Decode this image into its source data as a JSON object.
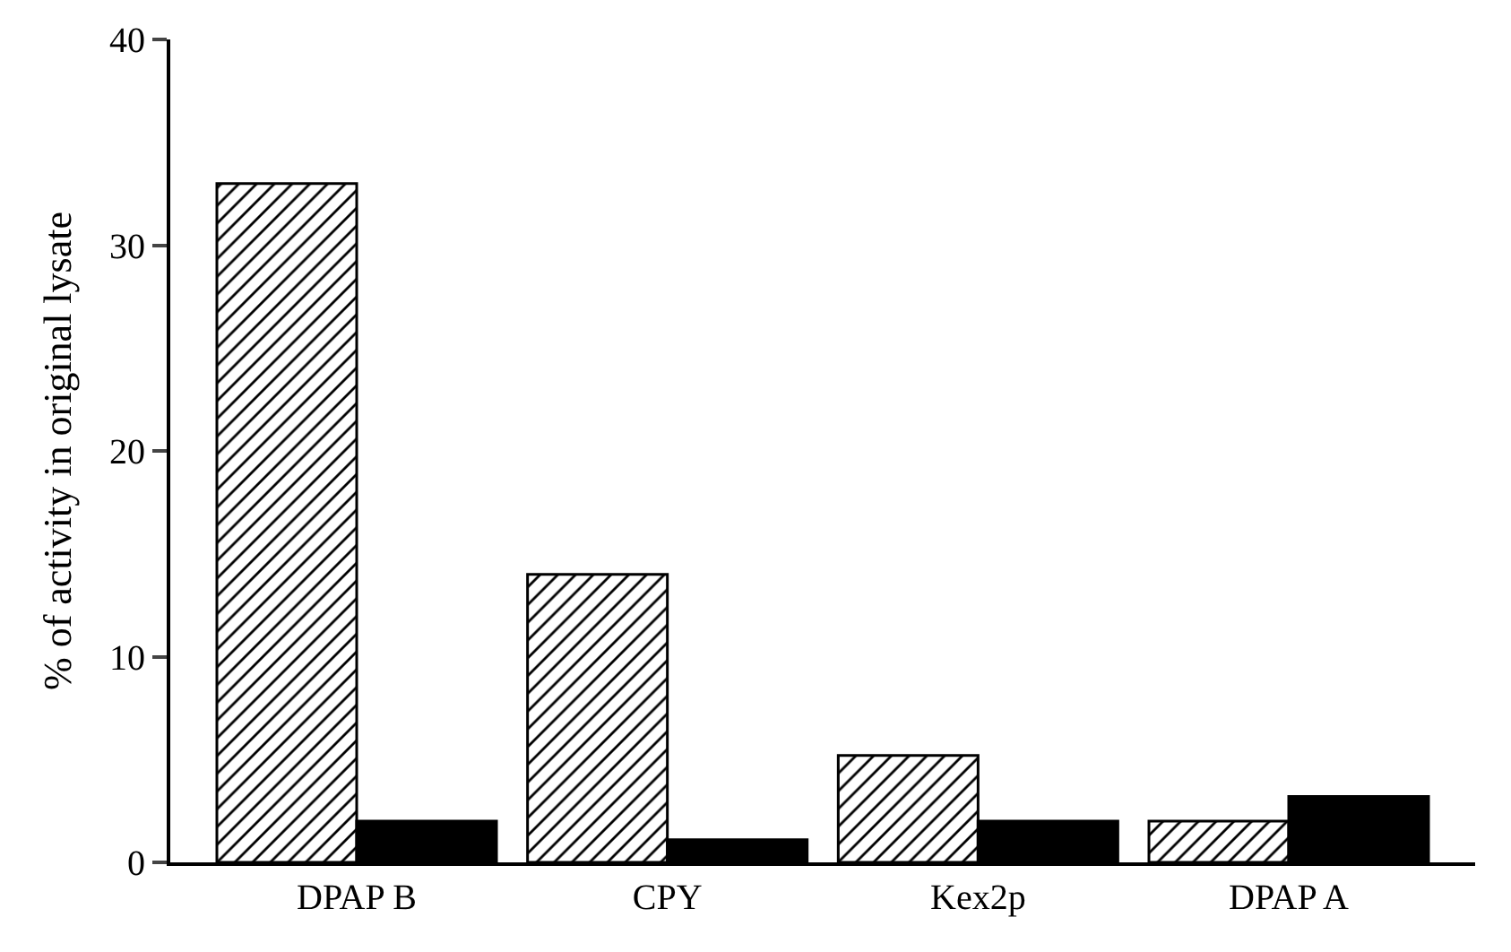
{
  "chart_data": {
    "type": "bar",
    "ylabel": "% of activity in original lysate",
    "categories": [
      "DPAP B",
      "CPY",
      "Kex2p",
      "DPAP A"
    ],
    "series": [
      {
        "color": "#000000",
        "values": [
          33,
          14,
          5.2,
          2
        ]
      },
      {
        "color": "#000000",
        "values": [
          2,
          1.1,
          2,
          3.2
        ]
      }
    ],
    "ylim": [
      0,
      40
    ],
    "yticks": [
      0,
      10,
      20,
      30,
      40
    ],
    "grid": false
  }
}
